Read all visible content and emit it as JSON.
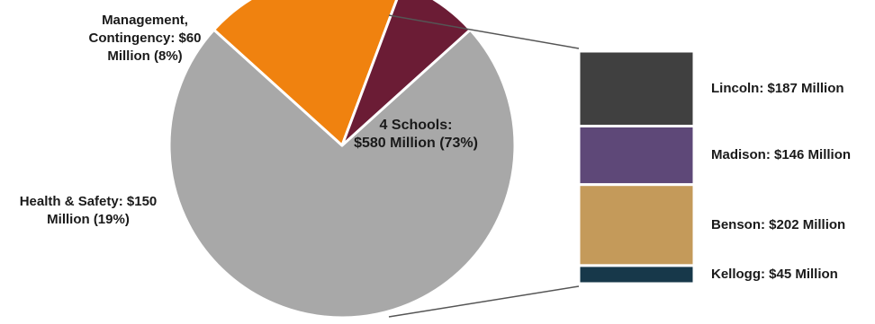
{
  "chart_data": [
    {
      "type": "pie",
      "title": "",
      "slices": [
        {
          "name": "4 Schools",
          "value": 580,
          "percent": 73,
          "label": "4 Schools: $580 Million (73%)",
          "color": "#a8a8a8"
        },
        {
          "name": "Health & Safety",
          "value": 150,
          "percent": 19,
          "label": "Health & Safety: $150 Million (19%)",
          "color": "#f0820f"
        },
        {
          "name": "Management, Contingency",
          "value": 60,
          "percent": 8,
          "label": "Management, Contingency: $60 Million (8%)",
          "color": "#6b1c35"
        }
      ],
      "label_lines": {
        "schools": [
          "4 Schools:",
          "$580 Million (73%)"
        ],
        "health": [
          "Health & Safety: $150",
          "Million (19%)"
        ],
        "management": [
          "Management,",
          "Contingency: $60",
          "Million (8%)"
        ]
      },
      "exploded_slice": "4 Schools"
    },
    {
      "type": "bar",
      "stacked": true,
      "categories": [
        "Lincoln",
        "Madison",
        "Benson",
        "Kellogg"
      ],
      "values": [
        187,
        146,
        202,
        45
      ],
      "labels": [
        "Lincoln: $187 Million",
        "Madison: $146 Million",
        "Benson: $202 Million",
        "Kellogg: $45 Million"
      ],
      "colors": [
        "#404040",
        "#5e4878",
        "#c49a5a",
        "#17384a"
      ]
    }
  ],
  "colors": {
    "connector": "#555555",
    "separator": "#ffffff"
  }
}
